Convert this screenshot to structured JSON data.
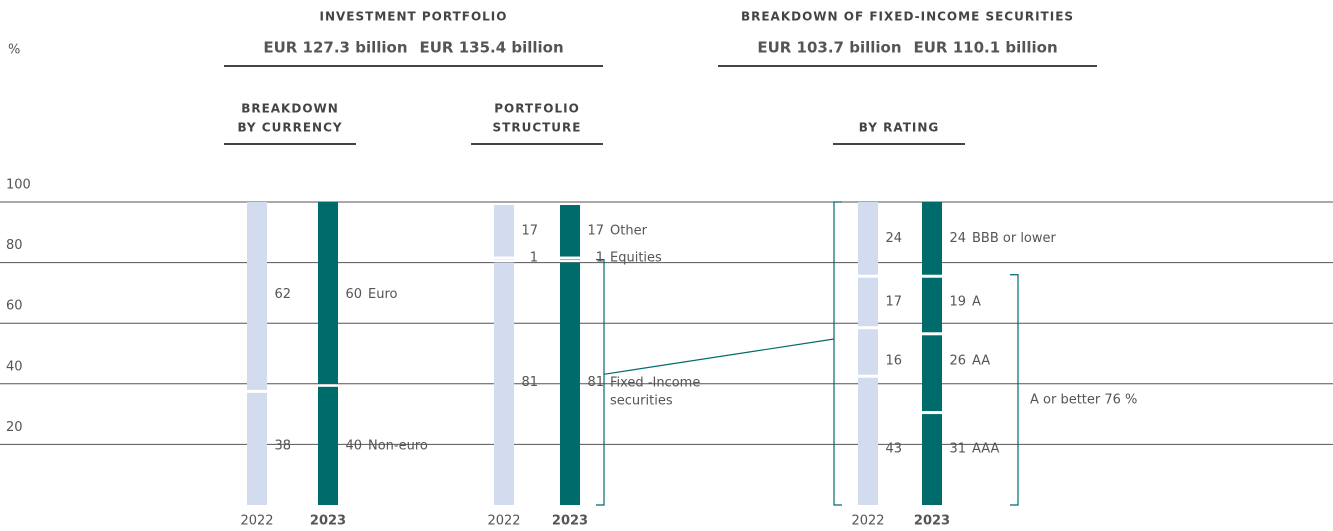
{
  "chart_data": {
    "type": "stacked_bar",
    "unit": "%",
    "headers": [
      {
        "title": "INVESTMENT PORTFOLIO",
        "amounts": [
          "EUR 127.3 billion",
          "EUR 135.4 billion"
        ]
      },
      {
        "title": "BREAKDOWN OF FIXED-INCOME SECURITIES",
        "amounts": [
          "EUR 103.7 billion",
          "EUR 110.1 billion"
        ]
      }
    ],
    "years": [
      "2022",
      "2023"
    ],
    "colors": [
      "#d3dbef",
      "#006b6b"
    ],
    "amount_colors": [
      "#1f6fa8",
      "#006b6b"
    ],
    "ylim": [
      0,
      100
    ],
    "yticks": [
      20,
      40,
      60,
      80,
      100
    ],
    "grid": true,
    "groups": [
      {
        "title": [
          "BREAKDOWN",
          "BY CURRENCY"
        ],
        "segments": [
          {
            "name": "Non-euro",
            "values": [
              38,
              40
            ]
          },
          {
            "name": "Euro",
            "values": [
              62,
              60
            ]
          }
        ]
      },
      {
        "title": [
          "PORTFOLIO",
          "STRUCTURE"
        ],
        "segments": [
          {
            "name": "Fixed -Income securities",
            "values": [
              81,
              81
            ]
          },
          {
            "name": "Equities",
            "values": [
              1,
              1
            ]
          },
          {
            "name": "Other",
            "values": [
              17,
              17
            ]
          }
        ]
      },
      {
        "title": [
          "BY RATING"
        ],
        "segments": [
          {
            "name": "AAA",
            "values": [
              43,
              31
            ]
          },
          {
            "name": "AA",
            "values": [
              16,
              26
            ]
          },
          {
            "name": "A",
            "values": [
              17,
              19
            ]
          },
          {
            "name": "BBB or lower",
            "values": [
              24,
              24
            ]
          }
        ]
      }
    ],
    "annotation": "A or better 76 %"
  }
}
